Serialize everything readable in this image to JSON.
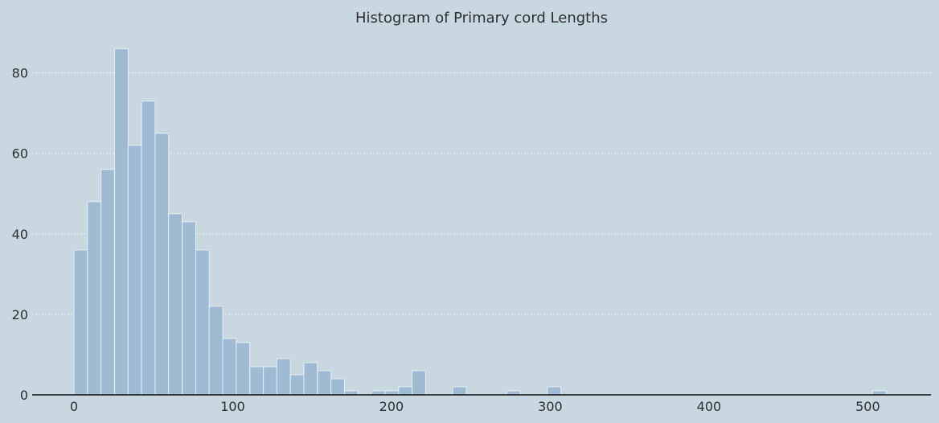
{
  "chart_data": {
    "type": "bar",
    "title": "Histogram of Primary cord Lengths",
    "xlabel": "",
    "ylabel": "",
    "xlim": [
      -25,
      540
    ],
    "ylim": [
      0,
      89
    ],
    "bin_width": 8.52,
    "grid": "horizontal dotted",
    "x_ticks": [
      0,
      100,
      200,
      300,
      400,
      500
    ],
    "y_ticks": [
      0,
      20,
      40,
      60,
      80
    ],
    "bins": [
      {
        "x0": 0.0,
        "count": 36
      },
      {
        "x0": 8.5,
        "count": 48
      },
      {
        "x0": 17.0,
        "count": 56
      },
      {
        "x0": 25.6,
        "count": 86
      },
      {
        "x0": 34.1,
        "count": 62
      },
      {
        "x0": 42.6,
        "count": 73
      },
      {
        "x0": 51.1,
        "count": 65
      },
      {
        "x0": 59.6,
        "count": 45
      },
      {
        "x0": 68.2,
        "count": 43
      },
      {
        "x0": 76.7,
        "count": 36
      },
      {
        "x0": 85.2,
        "count": 22
      },
      {
        "x0": 93.7,
        "count": 14
      },
      {
        "x0": 102.2,
        "count": 13
      },
      {
        "x0": 110.8,
        "count": 7
      },
      {
        "x0": 119.3,
        "count": 7
      },
      {
        "x0": 127.8,
        "count": 9
      },
      {
        "x0": 136.3,
        "count": 5
      },
      {
        "x0": 144.8,
        "count": 8
      },
      {
        "x0": 153.4,
        "count": 6
      },
      {
        "x0": 161.9,
        "count": 4
      },
      {
        "x0": 170.4,
        "count": 1
      },
      {
        "x0": 187.4,
        "count": 1
      },
      {
        "x0": 196.0,
        "count": 1
      },
      {
        "x0": 204.5,
        "count": 2
      },
      {
        "x0": 213.0,
        "count": 6
      },
      {
        "x0": 238.6,
        "count": 2
      },
      {
        "x0": 272.6,
        "count": 1
      },
      {
        "x0": 298.2,
        "count": 2
      },
      {
        "x0": 503.0,
        "count": 1
      }
    ]
  }
}
